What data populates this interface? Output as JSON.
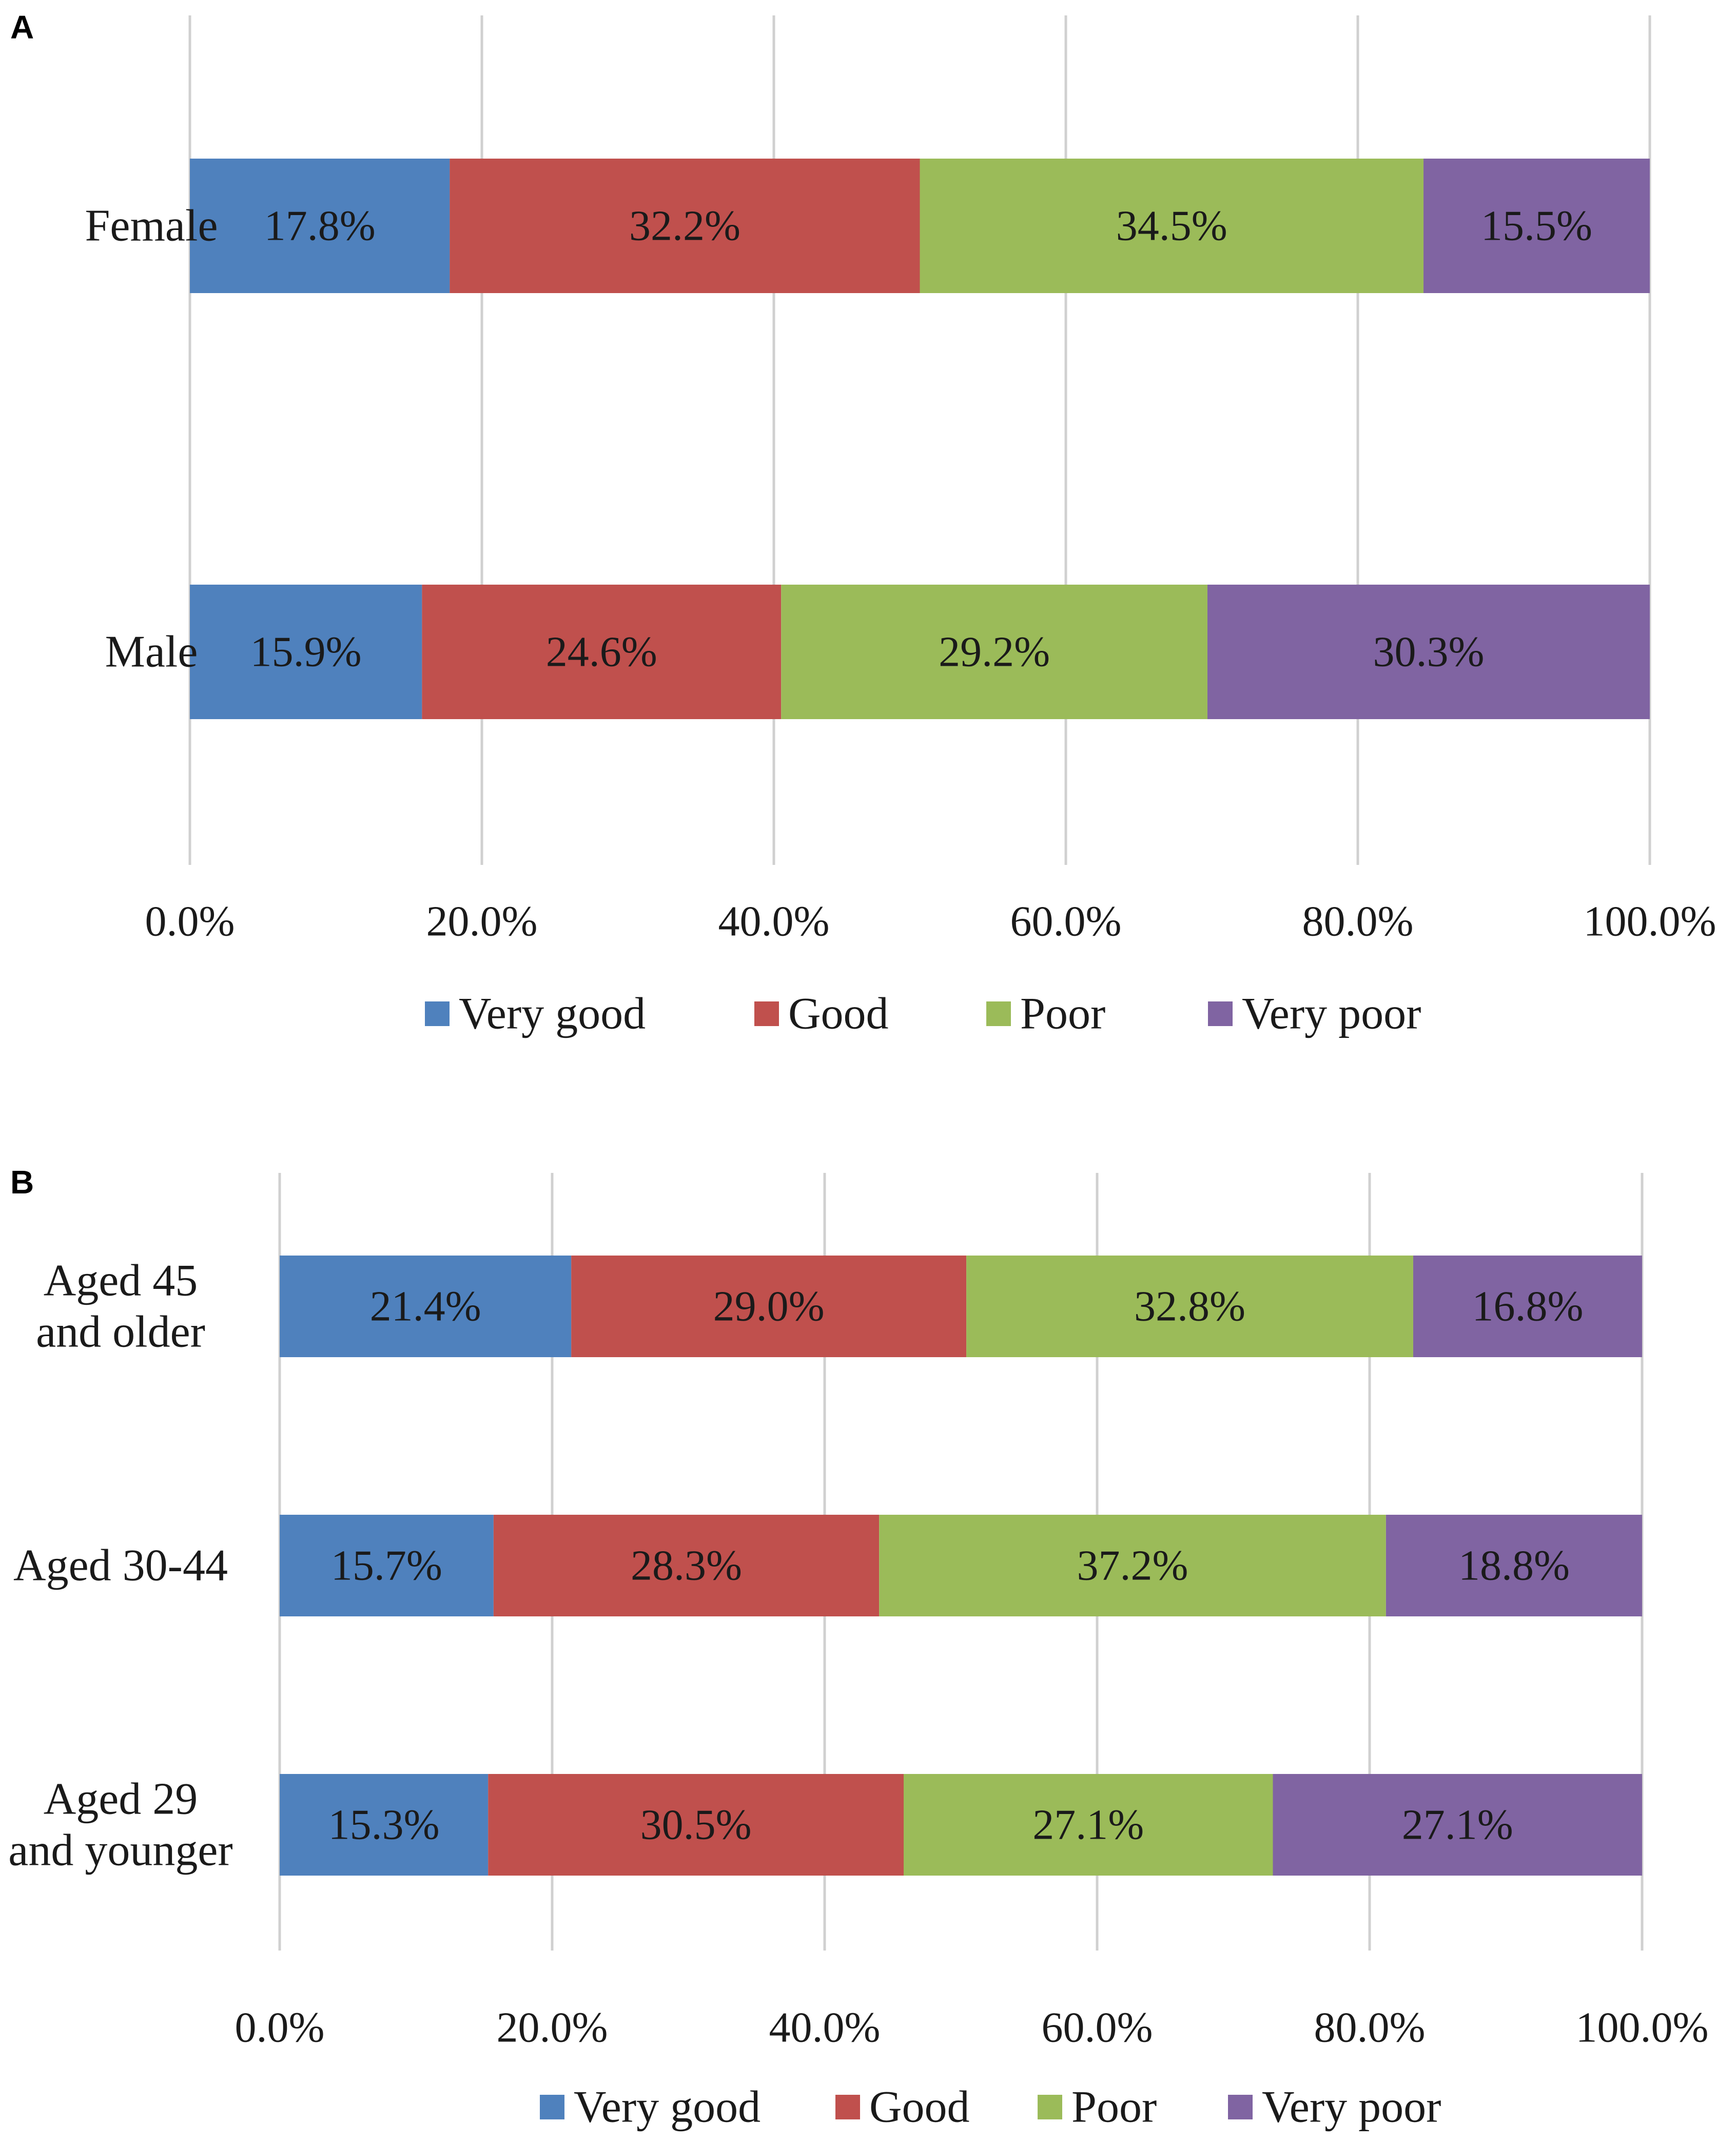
{
  "chart_data": [
    {
      "panel": "A",
      "type": "bar",
      "orientation": "horizontal",
      "stacked": true,
      "categories": [
        "Female",
        "Male"
      ],
      "series": [
        {
          "name": "Very good",
          "color": "#4f81bd",
          "values": [
            17.8,
            15.9
          ]
        },
        {
          "name": "Good",
          "color": "#c0504d",
          "values": [
            32.2,
            24.6
          ]
        },
        {
          "name": "Poor",
          "color": "#9bbb59",
          "values": [
            34.5,
            29.2
          ]
        },
        {
          "name": "Very poor",
          "color": "#8064a2",
          "values": [
            15.5,
            30.3
          ]
        }
      ],
      "data_labels": [
        [
          "17.8%",
          "15.9%"
        ],
        [
          "32.2%",
          "24.6%"
        ],
        [
          "34.5%",
          "29.2%"
        ],
        [
          "15.5%",
          "30.3%"
        ]
      ],
      "xlim": [
        0,
        100
      ],
      "xticks": [
        0,
        20,
        40,
        60,
        80,
        100
      ],
      "xtick_labels": [
        "0.0%",
        "20.0%",
        "40.0%",
        "60.0%",
        "80.0%",
        "100.0%"
      ],
      "grid": true,
      "legend_position": "bottom"
    },
    {
      "panel": "B",
      "type": "bar",
      "orientation": "horizontal",
      "stacked": true,
      "categories": [
        [
          "Aged 45",
          "and older"
        ],
        [
          "Aged 30-44"
        ],
        [
          "Aged 29",
          "and younger"
        ]
      ],
      "series": [
        {
          "name": "Very good",
          "color": "#4f81bd",
          "values": [
            21.4,
            15.7,
            15.3
          ]
        },
        {
          "name": "Good",
          "color": "#c0504d",
          "values": [
            29.0,
            28.3,
            30.5
          ]
        },
        {
          "name": "Poor",
          "color": "#9bbb59",
          "values": [
            32.8,
            37.2,
            27.1
          ]
        },
        {
          "name": "Very poor",
          "color": "#8064a2",
          "values": [
            16.8,
            18.8,
            27.1
          ]
        }
      ],
      "data_labels": [
        [
          "21.4%",
          "15.7%",
          "15.3%"
        ],
        [
          "29.0%",
          "28.3%",
          "30.5%"
        ],
        [
          "32.8%",
          "37.2%",
          "27.1%"
        ],
        [
          "16.8%",
          "18.8%",
          "27.1%"
        ]
      ],
      "xlim": [
        0,
        100
      ],
      "xticks": [
        0,
        20,
        40,
        60,
        80,
        100
      ],
      "xtick_labels": [
        "0.0%",
        "20.0%",
        "40.0%",
        "60.0%",
        "80.0%",
        "100.0%"
      ],
      "grid": true,
      "legend_position": "bottom"
    }
  ]
}
